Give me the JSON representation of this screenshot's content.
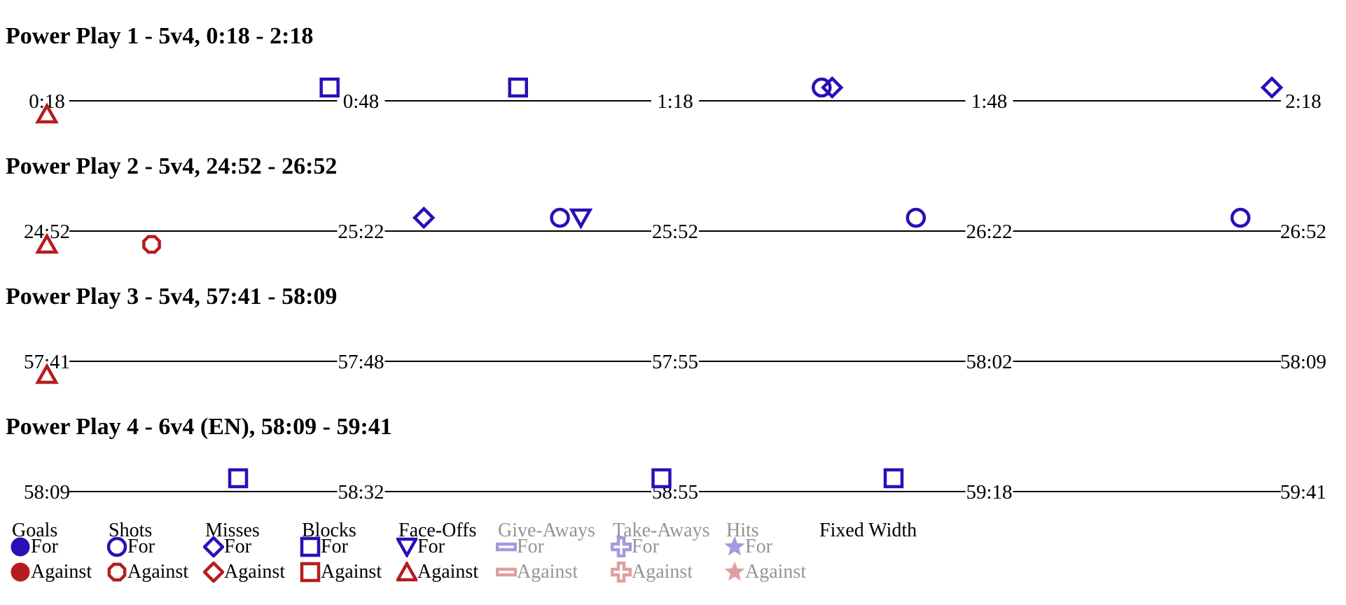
{
  "colors": {
    "for": "#2a0fb7",
    "against": "#b71c1c",
    "axis": "#000000"
  },
  "chart_data": {
    "type": "scatter",
    "panels": [
      {
        "title": "Power Play 1 - 5v4, 0:18 - 2:18",
        "start": 18,
        "end": 138,
        "ticks": [
          "0:18",
          "0:48",
          "1:18",
          "1:48",
          "2:18"
        ],
        "events": [
          {
            "t": 18,
            "type": "faceoff",
            "team": "against"
          },
          {
            "t": 45,
            "type": "block",
            "team": "for"
          },
          {
            "t": 63,
            "type": "block",
            "team": "for"
          },
          {
            "t": 92,
            "type": "shot",
            "team": "for"
          },
          {
            "t": 93,
            "type": "miss",
            "team": "for"
          },
          {
            "t": 135,
            "type": "miss",
            "team": "for"
          }
        ]
      },
      {
        "title": "Power Play 2 - 5v4, 24:52 - 26:52",
        "start": 1492,
        "end": 1612,
        "ticks": [
          "24:52",
          "25:22",
          "25:52",
          "26:22",
          "26:52"
        ],
        "events": [
          {
            "t": 1492,
            "type": "faceoff",
            "team": "against"
          },
          {
            "t": 1502,
            "type": "shot",
            "team": "against"
          },
          {
            "t": 1528,
            "type": "miss",
            "team": "for"
          },
          {
            "t": 1541,
            "type": "shot",
            "team": "for"
          },
          {
            "t": 1543,
            "type": "faceoff",
            "team": "for"
          },
          {
            "t": 1575,
            "type": "shot",
            "team": "for"
          },
          {
            "t": 1606,
            "type": "shot",
            "team": "for"
          }
        ]
      },
      {
        "title": "Power Play 3 - 5v4, 57:41 - 58:09",
        "start": 3461,
        "end": 3489,
        "ticks": [
          "57:41",
          "57:48",
          "57:55",
          "58:02",
          "58:09"
        ],
        "events": [
          {
            "t": 3461,
            "type": "faceoff",
            "team": "against"
          }
        ]
      },
      {
        "title": "Power Play 4 - 6v4 (EN), 58:09 - 59:41",
        "start": 3489,
        "end": 3581,
        "ticks": [
          "58:09",
          "58:32",
          "58:55",
          "59:18",
          "59:41"
        ],
        "events": [
          {
            "t": 3503,
            "type": "block",
            "team": "for"
          },
          {
            "t": 3534,
            "type": "block",
            "team": "for"
          },
          {
            "t": 3551,
            "type": "block",
            "team": "for"
          }
        ]
      }
    ],
    "legend": [
      {
        "key": "goal",
        "label": "Goals",
        "active": true
      },
      {
        "key": "shot",
        "label": "Shots",
        "active": true
      },
      {
        "key": "miss",
        "label": "Misses",
        "active": true
      },
      {
        "key": "block",
        "label": "Blocks",
        "active": true
      },
      {
        "key": "faceoff",
        "label": "Face-Offs",
        "active": true
      },
      {
        "key": "giveaway",
        "label": "Give-Aways",
        "active": false
      },
      {
        "key": "takeaway",
        "label": "Take-Aways",
        "active": false
      },
      {
        "key": "hit",
        "label": "Hits",
        "active": false
      }
    ],
    "for_label": "For",
    "against_label": "Against",
    "fixed_width_label": "Fixed Width"
  }
}
